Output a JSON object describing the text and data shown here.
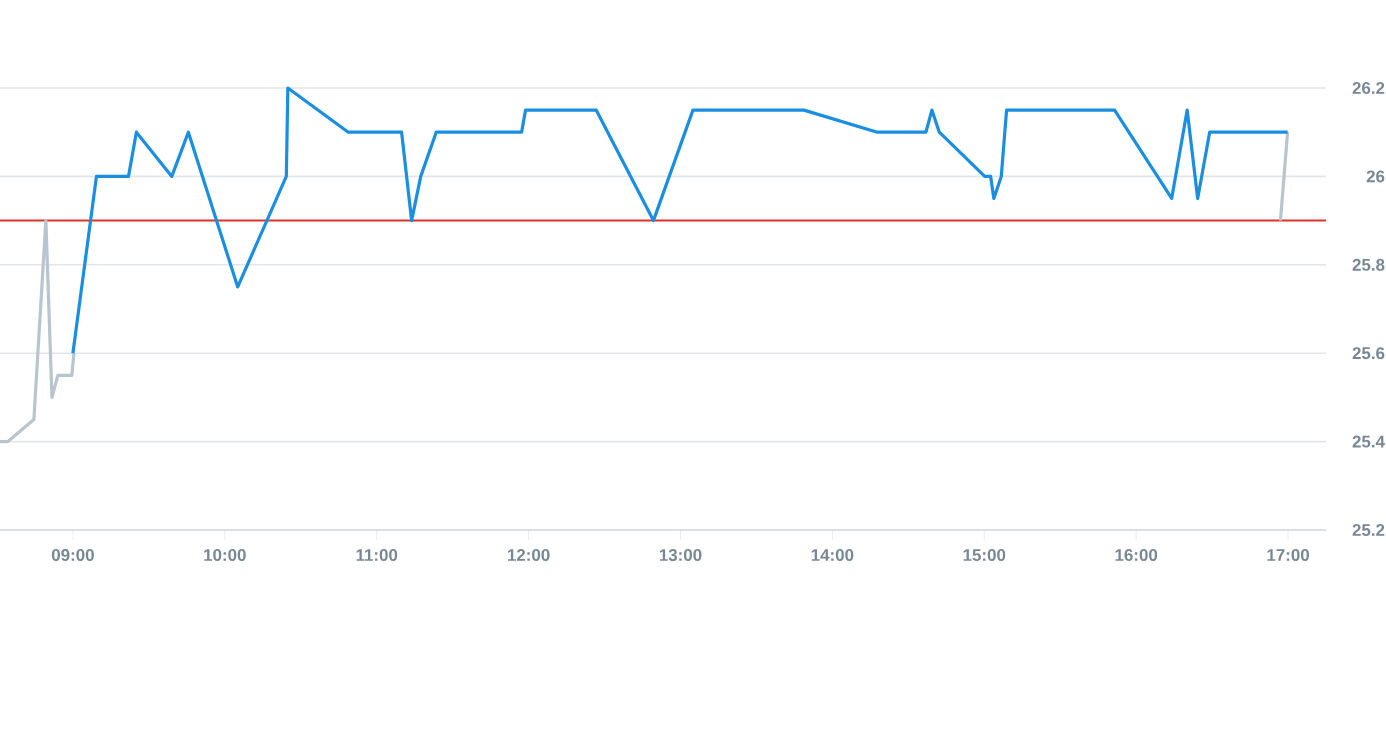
{
  "chart_data": {
    "type": "line",
    "xlim": [
      8.52,
      17.25
    ],
    "ylim": [
      25.2,
      26.2
    ],
    "xticks": [
      {
        "value": 9,
        "label": "09:00"
      },
      {
        "value": 10,
        "label": "10:00"
      },
      {
        "value": 11,
        "label": "11:00"
      },
      {
        "value": 12,
        "label": "12:00"
      },
      {
        "value": 13,
        "label": "13:00"
      },
      {
        "value": 14,
        "label": "14:00"
      },
      {
        "value": 15,
        "label": "15:00"
      },
      {
        "value": 16,
        "label": "16:00"
      },
      {
        "value": 17,
        "label": "17:00"
      }
    ],
    "yticks": [
      25.2,
      25.4,
      25.6,
      25.8,
      {
        "value": 26,
        "label": "26"
      },
      26.2
    ],
    "grid": "y",
    "ref_lines": [
      {
        "axis": "y",
        "value": 25.9,
        "color": "#d9342b"
      }
    ],
    "series": [
      {
        "color": "#b8c4ce",
        "x": [
          8.52,
          8.572,
          8.743,
          8.822,
          8.862,
          8.901,
          8.993,
          9.007
        ],
        "values": [
          25.4,
          25.4,
          25.45,
          25.9,
          25.5,
          25.55,
          25.55,
          25.6
        ]
      },
      {
        "color": "#b8c4ce",
        "x": [
          16.95,
          16.997
        ],
        "values": [
          25.9,
          26.1
        ]
      },
      {
        "color": "#1a8ee0",
        "x": [
          9.0,
          9.155,
          9.366,
          9.418,
          9.651,
          9.76,
          10.085,
          10.405,
          10.415,
          10.813,
          11.164,
          11.23,
          11.29,
          11.392,
          11.954,
          11.98,
          12.445,
          12.822,
          13.082,
          13.813,
          14.296,
          14.616,
          14.655,
          14.704,
          15.003,
          15.042,
          15.063,
          15.112,
          15.147,
          15.858,
          16.234,
          16.336,
          16.405,
          16.484,
          16.997
        ],
        "values": [
          25.6,
          26.0,
          26.0,
          26.1,
          26.0,
          26.1,
          25.75,
          26.0,
          26.2,
          26.1,
          26.1,
          25.9,
          26.0,
          26.1,
          26.1,
          26.15,
          26.15,
          25.9,
          26.15,
          26.15,
          26.1,
          26.1,
          26.15,
          26.1,
          26.0,
          26.0,
          25.95,
          26.0,
          26.15,
          26.15,
          25.95,
          26.15,
          25.95,
          26.1,
          26.1
        ]
      }
    ]
  }
}
